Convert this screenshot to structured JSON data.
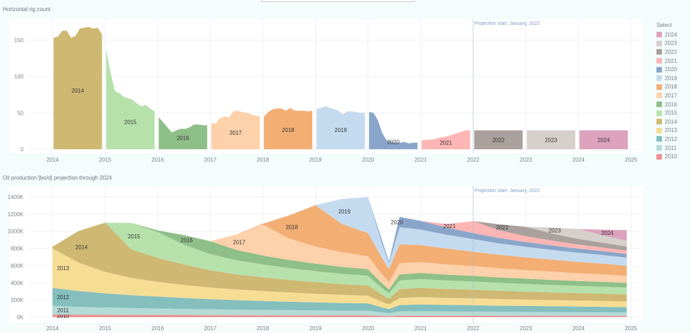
{
  "legend": {
    "title": "Select",
    "items": [
      {
        "label": "2024",
        "color": "#dca2be"
      },
      {
        "label": "2023",
        "color": "#d6cfcb"
      },
      {
        "label": "2022",
        "color": "#aaa09c"
      },
      {
        "label": "2021",
        "color": "#fdb6b4"
      },
      {
        "label": "2020",
        "color": "#89a6ca"
      },
      {
        "label": "2019",
        "color": "#c4dbef"
      },
      {
        "label": "2018",
        "color": "#f3ae74"
      },
      {
        "label": "2017",
        "color": "#fdd1aa"
      },
      {
        "label": "2016",
        "color": "#8fbf88"
      },
      {
        "label": "2015",
        "color": "#b6e1ab"
      },
      {
        "label": "2014",
        "color": "#ceb872"
      },
      {
        "label": "2013",
        "color": "#f6dd94"
      },
      {
        "label": "2012",
        "color": "#84bfbe"
      },
      {
        "label": "2011",
        "color": "#b5dbd7"
      },
      {
        "label": "2010",
        "color": "#ef9191"
      }
    ]
  },
  "chart_data": [
    {
      "type": "area",
      "title": "Horizontal rig count",
      "xlabel": "",
      "ylabel": "",
      "xlim": [
        2014,
        2025
      ],
      "ylim": [
        0,
        170
      ],
      "yticks": [
        0,
        50,
        100,
        150
      ],
      "xticks": [
        "2014",
        "2015",
        "2016",
        "2017",
        "2018",
        "2019",
        "2020",
        "2021",
        "2022",
        "2023",
        "2024",
        "2025"
      ],
      "annotation": "Projection start: January, 2022",
      "projection_start": 2022,
      "series": [
        {
          "name": "2014",
          "values": [
            153,
            155,
            163,
            163,
            153,
            156,
            166,
            167,
            168,
            166,
            167,
            158
          ]
        },
        {
          "name": "2015",
          "values": [
            138,
            105,
            80,
            77,
            72,
            70,
            68,
            63,
            59,
            61,
            56,
            52
          ]
        },
        {
          "name": "2016",
          "values": [
            44,
            37,
            30,
            23,
            26,
            28,
            28,
            30,
            34,
            34,
            33,
            33
          ]
        },
        {
          "name": "2017",
          "values": [
            36,
            35,
            43,
            45,
            44,
            52,
            53,
            51,
            50,
            48,
            46,
            45
          ]
        },
        {
          "name": "2018",
          "values": [
            45,
            51,
            55,
            56,
            56,
            53,
            57,
            53,
            53,
            53,
            52,
            53
          ]
        },
        {
          "name": "2019",
          "values": [
            55,
            57,
            59,
            57,
            55,
            53,
            48,
            52,
            52,
            51,
            50,
            50
          ]
        },
        {
          "name": "2020",
          "values": [
            51,
            50,
            40,
            22,
            12,
            10,
            9,
            9,
            10,
            8,
            9,
            9
          ]
        },
        {
          "name": "2021",
          "values": [
            12,
            13,
            13,
            14,
            16,
            17,
            18,
            20,
            22,
            24,
            26,
            26
          ]
        },
        {
          "name": "2022",
          "values": [
            26,
            26,
            26,
            26,
            26,
            26,
            26,
            26,
            26,
            26,
            26,
            26
          ]
        },
        {
          "name": "2023",
          "values": [
            26,
            26,
            26,
            26,
            26,
            26,
            26,
            26,
            26,
            26,
            26,
            26
          ]
        },
        {
          "name": "2024",
          "values": [
            26,
            26,
            26,
            26,
            26,
            26,
            26,
            26,
            26,
            26,
            26,
            26
          ]
        }
      ]
    },
    {
      "type": "area",
      "stacked": true,
      "title": "Oil production [bo/d] projection through 2024",
      "xlabel": "",
      "ylabel": "",
      "xlim": [
        2014,
        2025
      ],
      "ylim": [
        0,
        1450
      ],
      "yunit": "K",
      "yticks": [
        "0K",
        "200K",
        "400K",
        "600K",
        "800K",
        "1000K",
        "1200K",
        "1400K"
      ],
      "ytick_values": [
        0,
        200,
        400,
        600,
        800,
        1000,
        1200,
        1400
      ],
      "xticks": [
        "2014",
        "2015",
        "2016",
        "2017",
        "2018",
        "2019",
        "2020",
        "2021",
        "2022",
        "2023",
        "2024",
        "2025"
      ],
      "annotation": "Projection start: January, 2022",
      "projection_start": 2022,
      "x": [
        2014,
        2014.5,
        2015,
        2015.5,
        2016,
        2016.5,
        2017,
        2017.5,
        2018,
        2018.5,
        2019,
        2019.5,
        2020,
        2020.25,
        2020.4,
        2020.6,
        2021,
        2021.5,
        2022,
        2022.5,
        2023,
        2023.5,
        2024,
        2024.5,
        2024.92
      ],
      "series": [
        {
          "name": "2010",
          "values": [
            30,
            28,
            27,
            26,
            25,
            24,
            23,
            22,
            22,
            21,
            21,
            20,
            20,
            15,
            12,
            17,
            18,
            17,
            17,
            16,
            16,
            15,
            15,
            15,
            14
          ]
        },
        {
          "name": "2011",
          "values": [
            100,
            90,
            85,
            80,
            75,
            72,
            68,
            65,
            62,
            60,
            58,
            56,
            55,
            40,
            32,
            48,
            50,
            48,
            47,
            45,
            44,
            43,
            42,
            41,
            40
          ]
        },
        {
          "name": "2012",
          "values": [
            210,
            185,
            165,
            150,
            140,
            128,
            118,
            110,
            104,
            98,
            93,
            88,
            85,
            62,
            50,
            75,
            80,
            77,
            75,
            72,
            70,
            68,
            66,
            64,
            62
          ]
        },
        {
          "name": "2013",
          "values": [
            460,
            330,
            250,
            200,
            170,
            150,
            135,
            125,
            115,
            108,
            100,
            95,
            90,
            65,
            52,
            82,
            85,
            82,
            80,
            77,
            74,
            72,
            70,
            68,
            66
          ]
        },
        {
          "name": "2014",
          "values": [
            20,
            370,
            573,
            330,
            280,
            240,
            200,
            175,
            160,
            145,
            135,
            125,
            118,
            85,
            68,
            105,
            108,
            104,
            100,
            96,
            93,
            90,
            87,
            85,
            83
          ]
        },
        {
          "name": "2015",
          "values": [
            0,
            0,
            0,
            310,
            300,
            230,
            190,
            165,
            150,
            138,
            128,
            120,
            112,
            80,
            64,
            100,
            102,
            98,
            95,
            92,
            89,
            86,
            83,
            81,
            79
          ]
        },
        {
          "name": "2016",
          "values": [
            0,
            0,
            0,
            0,
            20,
            110,
            150,
            120,
            105,
            95,
            88,
            82,
            78,
            56,
            45,
            70,
            72,
            69,
            67,
            64,
            62,
            60,
            58,
            56,
            54
          ]
        },
        {
          "name": "2017",
          "values": [
            0,
            0,
            0,
            0,
            0,
            0,
            0,
            180,
            360,
            250,
            200,
            170,
            150,
            108,
            86,
            130,
            125,
            118,
            112,
            106,
            100,
            95,
            90,
            86,
            82
          ]
        },
        {
          "name": "2018",
          "values": [
            0,
            0,
            0,
            0,
            0,
            0,
            0,
            0,
            10,
            270,
            480,
            330,
            270,
            195,
            150,
            220,
            200,
            185,
            170,
            158,
            148,
            140,
            132,
            125,
            118
          ]
        },
        {
          "name": "2019",
          "values": [
            0,
            0,
            0,
            0,
            0,
            0,
            0,
            0,
            0,
            0,
            0,
            290,
            420,
            180,
            70,
            200,
            180,
            160,
            145,
            132,
            122,
            114,
            106,
            100,
            95
          ]
        },
        {
          "name": "2020",
          "values": [
            0,
            0,
            0,
            0,
            0,
            0,
            0,
            0,
            0,
            0,
            0,
            0,
            0,
            40,
            20,
            120,
            100,
            85,
            70,
            62,
            56,
            52,
            48,
            45,
            42
          ]
        },
        {
          "name": "2021",
          "values": [
            0,
            0,
            0,
            0,
            0,
            0,
            0,
            0,
            0,
            0,
            0,
            0,
            0,
            0,
            0,
            0,
            0,
            40,
            140,
            90,
            68,
            56,
            48,
            42,
            38
          ]
        },
        {
          "name": "2022",
          "values": [
            0,
            0,
            0,
            0,
            0,
            0,
            0,
            0,
            0,
            0,
            0,
            0,
            0,
            0,
            0,
            0,
            0,
            0,
            0,
            70,
            110,
            82,
            65,
            55,
            48
          ]
        },
        {
          "name": "2023",
          "values": [
            0,
            0,
            0,
            0,
            0,
            0,
            0,
            0,
            0,
            0,
            0,
            0,
            0,
            0,
            0,
            0,
            0,
            0,
            0,
            0,
            0,
            70,
            115,
            85,
            68
          ]
        },
        {
          "name": "2024",
          "values": [
            0,
            0,
            0,
            0,
            0,
            0,
            0,
            0,
            0,
            0,
            0,
            0,
            0,
            0,
            0,
            0,
            0,
            0,
            0,
            0,
            0,
            0,
            0,
            70,
            125
          ]
        }
      ]
    }
  ]
}
